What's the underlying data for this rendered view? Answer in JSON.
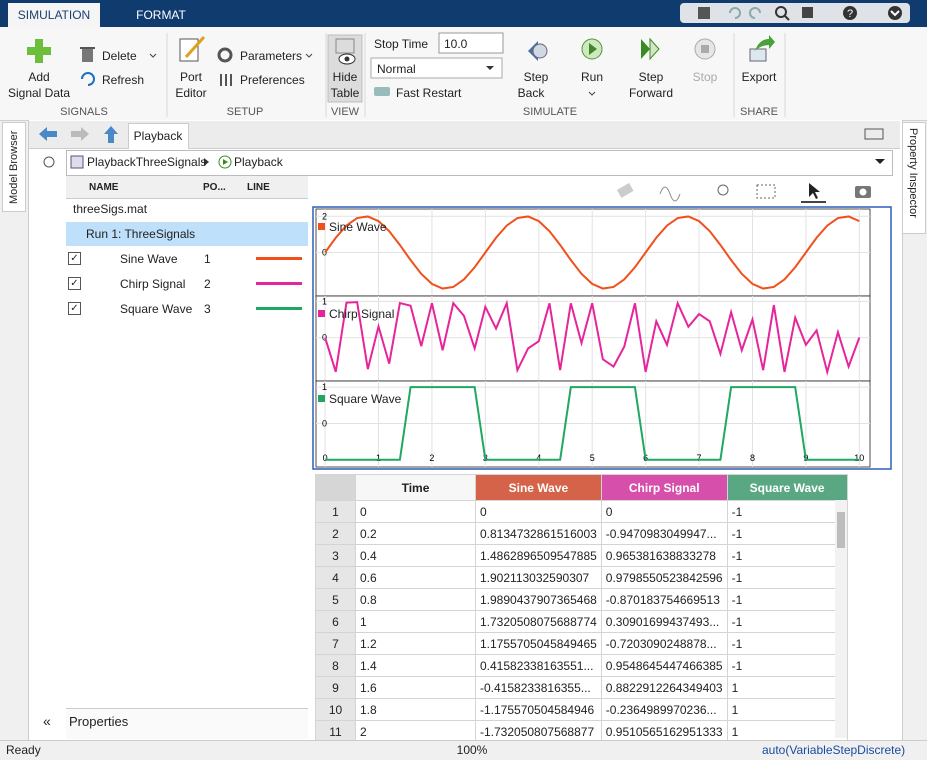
{
  "ribbon": {
    "tabs": [
      "SIMULATION",
      "FORMAT"
    ],
    "add_signal_data": [
      "Add",
      "Signal Data"
    ],
    "delete": "Delete",
    "refresh": "Refresh",
    "signals_label": "SIGNALS",
    "port_editor": [
      "Port",
      "Editor"
    ],
    "parameters": "Parameters",
    "preferences": "Preferences",
    "setup_label": "SETUP",
    "hide_table": [
      "Hide",
      "Table"
    ],
    "view_label": "VIEW",
    "stop_time_label": "Stop Time",
    "stop_time": "10.0",
    "mode": "Normal",
    "fast_restart": "Fast Restart",
    "step_back": [
      "Step",
      "Back"
    ],
    "run": "Run",
    "step_forward": [
      "Step",
      "Forward"
    ],
    "stop": "Stop",
    "simulate_label": "SIMULATE",
    "export": "Export",
    "share_label": "SHARE"
  },
  "side_tabs": {
    "left": "Model Browser",
    "right": "Property Inspector"
  },
  "document_tab": "Playback",
  "breadcrumb": [
    "PlaybackThreeSignals",
    "Playback"
  ],
  "signals": {
    "columns": [
      "NAME",
      "PO...",
      "LINE"
    ],
    "file": "threeSigs.mat",
    "run": "Run 1: ThreeSignals",
    "rows": [
      {
        "name": "Sine Wave",
        "port": 1
      },
      {
        "name": "Chirp Signal",
        "port": 2
      },
      {
        "name": "Square Wave",
        "port": 3
      }
    ],
    "properties": "Properties"
  },
  "chart_data": [
    {
      "type": "line",
      "x": [
        0,
        0.2,
        0.4,
        0.6,
        0.8,
        1,
        1.2,
        1.4,
        1.6,
        1.8,
        2,
        2.2,
        2.4,
        2.6,
        2.8,
        3,
        3.2,
        3.4,
        3.6,
        3.8,
        4,
        4.2,
        4.4,
        4.6,
        4.8,
        5,
        5.2,
        5.4,
        5.6,
        5.8,
        6,
        6.2,
        6.4,
        6.6,
        6.8,
        7,
        7.2,
        7.4,
        7.6,
        7.8,
        8,
        8.2,
        8.4,
        8.6,
        8.8,
        9,
        9.2,
        9.4,
        9.6,
        9.8,
        10
      ],
      "series": [
        {
          "name": "Sine Wave",
          "color": "#f0501c",
          "values": [
            0,
            0.8134732861516003,
            1.4862896509547885,
            1.902113032590307,
            1.9890437907365468,
            1.7320508075688774,
            1.1755705045849465,
            0.41582338163551,
            -0.41582338163551,
            -1.175570504584946,
            -1.7320508075688772,
            -1.989,
            -1.902,
            -1.486,
            -0.813,
            0,
            0.813,
            1.486,
            1.902,
            1.989,
            1.732,
            1.176,
            0.416,
            -0.416,
            -1.176,
            -1.732,
            -1.989,
            -1.902,
            -1.486,
            -0.813,
            0,
            0.813,
            1.486,
            1.902,
            1.989,
            1.732,
            1.176,
            0.416,
            -0.416,
            -1.176,
            -1.732,
            -1.989,
            -1.902,
            -1.486,
            -0.813,
            0,
            0.813,
            1.486,
            1.902,
            1.989,
            1.732
          ]
        }
      ],
      "xlim": [
        -0.17,
        10.2
      ],
      "xticks": [
        0,
        1,
        2,
        3,
        4,
        5,
        6,
        7,
        8,
        9,
        10
      ],
      "ylim": [
        -2.4,
        2.4
      ],
      "yticks": [
        0,
        2
      ],
      "grid": true
    },
    {
      "type": "line",
      "x": [
        0,
        0.2,
        0.4,
        0.6,
        0.8,
        1,
        1.2,
        1.4,
        1.6,
        1.8,
        2,
        2.2,
        2.4,
        2.6,
        2.8,
        3,
        3.2,
        3.4,
        3.6,
        3.8,
        4,
        4.2,
        4.4,
        4.6,
        4.8,
        5,
        5.2,
        5.4,
        5.6,
        5.8,
        6,
        6.2,
        6.4,
        6.6,
        6.8,
        7,
        7.2,
        7.4,
        7.6,
        7.8,
        8,
        8.2,
        8.4,
        8.6,
        8.8,
        9,
        9.2,
        9.4,
        9.6,
        9.8,
        10
      ],
      "series": [
        {
          "name": "Chirp Signal",
          "color": "#e6259c",
          "values": [
            0,
            -0.9470983049947,
            0.965381638833278,
            0.9798550523842596,
            -0.870183754669513,
            0.30901699437493,
            -0.7203090248878,
            0.9548645447466385,
            0.8822912264349403,
            -0.2364989970236,
            0.9510565162951333,
            -0.35,
            0.95,
            0.6,
            -0.3,
            0.85,
            0.25,
            0.95,
            -0.9,
            -0.3,
            -0.1,
            0.95,
            -0.9,
            0.95,
            -0.15,
            0.95,
            -0.6,
            -0.8,
            -0.25,
            0.95,
            -0.95,
            0.45,
            -0.2,
            0.95,
            0.3,
            0.65,
            0.45,
            -0.45,
            0.7,
            -0.35,
            0.5,
            -0.9,
            0.9,
            -0.95,
            0.55,
            -0.2,
            0.2,
            -0.95,
            0.15,
            -0.8,
            0
          ]
        }
      ],
      "xlim": [
        -0.17,
        10.2
      ],
      "xticks": [
        0,
        1,
        2,
        3,
        4,
        5,
        6,
        7,
        8,
        9,
        10
      ],
      "ylim": [
        -1.2,
        1.15
      ],
      "yticks": [
        0,
        1
      ],
      "grid": true
    },
    {
      "type": "line",
      "x": [
        0,
        0.2,
        0.4,
        0.6,
        0.8,
        1,
        1.2,
        1.4,
        1.6,
        1.8,
        2,
        2.2,
        2.4,
        2.6,
        2.8,
        3,
        3.2,
        3.4,
        3.6,
        3.8,
        4,
        4.2,
        4.4,
        4.6,
        4.8,
        5,
        5.2,
        5.4,
        5.6,
        5.8,
        6,
        6.2,
        6.4,
        6.6,
        6.8,
        7,
        7.2,
        7.4,
        7.6,
        7.8,
        8,
        8.2,
        8.4,
        8.6,
        8.8,
        9,
        9.2,
        9.4,
        9.6,
        9.8,
        10
      ],
      "series": [
        {
          "name": "Square Wave",
          "color": "#20a862",
          "values": [
            -1,
            -1,
            -1,
            -1,
            -1,
            -1,
            -1,
            -1,
            1,
            1,
            1,
            1,
            1,
            1,
            1,
            -1,
            -1,
            -1,
            -1,
            -1,
            -1,
            -1,
            -1,
            1,
            1,
            1,
            1,
            1,
            1,
            1,
            -1,
            -1,
            -1,
            -1,
            -1,
            -1,
            -1,
            -1,
            1,
            1,
            1,
            1,
            1,
            1,
            1,
            -1,
            -1,
            -1,
            -1,
            -1,
            -1
          ]
        }
      ],
      "xlim": [
        -0.17,
        10.2
      ],
      "xticks": [
        0,
        1,
        2,
        3,
        4,
        5,
        6,
        7,
        8,
        9,
        10
      ],
      "ylim": [
        -1.2,
        1.17
      ],
      "yticks": [
        0,
        1
      ],
      "grid": true
    }
  ],
  "table": {
    "columns": [
      {
        "label": "Time",
        "color": "#f7f7f7"
      },
      {
        "label": "Sine Wave",
        "color": "#d4634a"
      },
      {
        "label": "Chirp Signal",
        "color": "#d650ab"
      },
      {
        "label": "Square Wave",
        "color": "#5aa883"
      }
    ],
    "rows": [
      [
        "1",
        "0",
        "0",
        "0",
        "-1"
      ],
      [
        "2",
        "0.2",
        "0.8134732861516003",
        "-0.9470983049947...",
        "-1"
      ],
      [
        "3",
        "0.4",
        "1.4862896509547885",
        "0.965381638833278",
        "-1"
      ],
      [
        "4",
        "0.6",
        "1.902113032590307",
        "0.9798550523842596",
        "-1"
      ],
      [
        "5",
        "0.8",
        "1.9890437907365468",
        "-0.870183754669513",
        "-1"
      ],
      [
        "6",
        "1",
        "1.7320508075688774",
        "0.30901699437493...",
        "-1"
      ],
      [
        "7",
        "1.2",
        "1.1755705045849465",
        "-0.7203090248878...",
        "-1"
      ],
      [
        "8",
        "1.4",
        "0.41582338163551...",
        "0.9548645447466385",
        "-1"
      ],
      [
        "9",
        "1.6",
        "-0.4158233816355...",
        "0.8822912264349403",
        "1"
      ],
      [
        "10",
        "1.8",
        "-1.175570504584946",
        "-0.2364989970236...",
        "1"
      ],
      [
        "11",
        "2",
        "-1.732050807568877",
        "0.9510565162951333",
        "1"
      ]
    ]
  },
  "status": {
    "left": "Ready",
    "center": "100%",
    "right": "auto(VariableStepDiscrete)"
  }
}
